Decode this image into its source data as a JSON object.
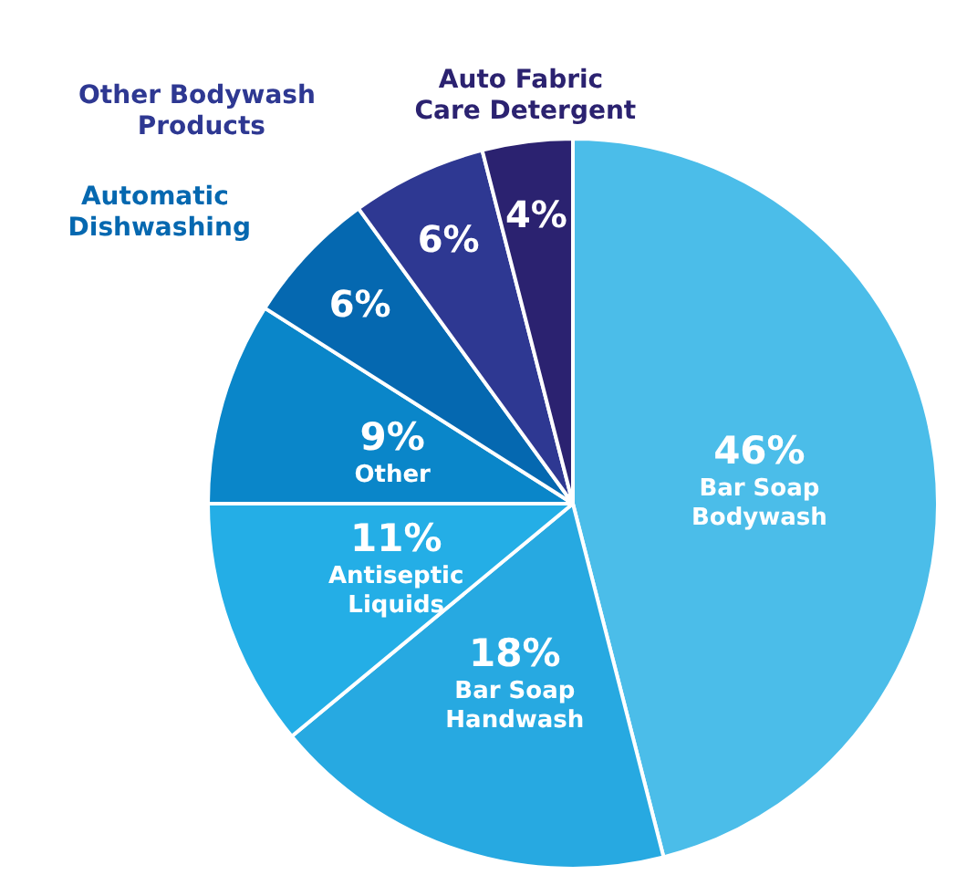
{
  "chart_data": {
    "type": "pie",
    "categories": [
      "Bar Soap Bodywash",
      "Bar Soap Handwash",
      "Antiseptic Liquids",
      "Other",
      "Automatic Dishwashing",
      "Other Bodywash Products",
      "Auto Fabric Care Detergent"
    ],
    "values": [
      46,
      18,
      11,
      9,
      6,
      6,
      4
    ],
    "colors": [
      "#4bbde9",
      "#27a9e1",
      "#24aee6",
      "#0a86c9",
      "#0568b0",
      "#2e3892",
      "#2b2270"
    ],
    "value_labels": [
      "46%",
      "18%",
      "11%",
      "9%",
      "6%",
      "6%",
      "4%"
    ],
    "legend": false
  }
}
